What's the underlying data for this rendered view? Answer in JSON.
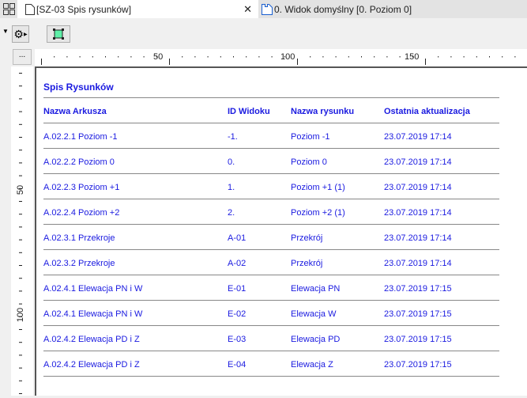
{
  "tabs": [
    {
      "label": "[SZ-03 Spis rysunków]",
      "active": true
    },
    {
      "label": "0. Widok domyślny [0. Poziom 0]",
      "active": false
    }
  ],
  "ruler": {
    "h_labels": [
      "50",
      "100",
      "150"
    ],
    "v_labels": [
      "50",
      "100"
    ],
    "more_label": "..."
  },
  "schedule": {
    "title": "Spis Rysunków",
    "columns": [
      "Nazwa Arkusza",
      "ID Widoku",
      "Nazwa rysunku",
      "Ostatnia aktualizacja"
    ],
    "rows": [
      [
        "A.02.2.1 Poziom -1",
        "-1.",
        "Poziom -1",
        "23.07.2019 17:14"
      ],
      [
        "A.02.2.2 Poziom 0",
        "0.",
        "Poziom 0",
        "23.07.2019 17:14"
      ],
      [
        "A.02.2.3 Poziom +1",
        "1.",
        "Poziom +1 (1)",
        "23.07.2019 17:14"
      ],
      [
        "A.02.2.4 Poziom +2",
        "2.",
        "Poziom +2 (1)",
        "23.07.2019 17:14"
      ],
      [
        "A.02.3.1 Przekroje",
        "A-01",
        "Przekrój",
        "23.07.2019 17:14"
      ],
      [
        "A.02.3.2 Przekroje",
        "A-02",
        "Przekrój",
        "23.07.2019 17:14"
      ],
      [
        "A.02.4.1 Elewacja PN i W",
        "E-01",
        "Elewacja PN",
        "23.07.2019 17:15"
      ],
      [
        "A.02.4.1 Elewacja PN i W",
        "E-02",
        "Elewacja W",
        "23.07.2019 17:15"
      ],
      [
        "A.02.4.2 Elewacja PD i Z",
        "E-03",
        "Elewacja PD",
        "23.07.2019 17:15"
      ],
      [
        "A.02.4.2 Elewacja PD i Z",
        "E-04",
        "Elewacja Z",
        "23.07.2019 17:15"
      ]
    ]
  },
  "colors": {
    "text": "#1a1ae0",
    "accent_green": "#5ef0a8"
  }
}
